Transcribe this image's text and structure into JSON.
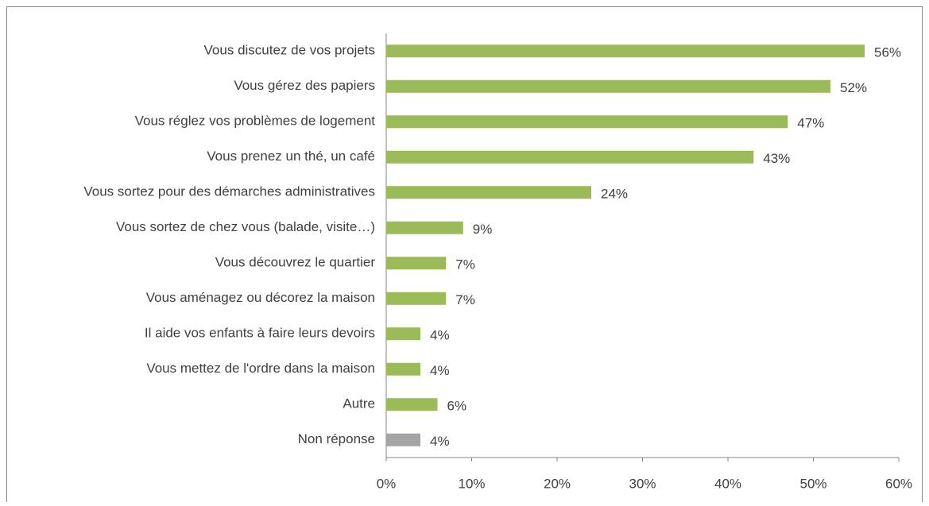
{
  "chart_data": {
    "type": "bar",
    "orientation": "horizontal",
    "categories": [
      "Vous discutez de vos projets",
      "Vous gérez des papiers",
      "Vous réglez vos problèmes de logement",
      "Vous prenez un thé, un café",
      "Vous sortez pour des démarches administratives",
      "Vous sortez de chez vous (balade, visite…)",
      "Vous découvrez le quartier",
      "Vous aménagez ou décorez la maison",
      "Il aide vos enfants à faire leurs devoirs",
      "Vous mettez de l'ordre dans la maison",
      "Autre",
      "Non réponse"
    ],
    "values": [
      56,
      52,
      47,
      43,
      24,
      9,
      7,
      7,
      4,
      4,
      6,
      4
    ],
    "value_labels": [
      "56%",
      "52%",
      "47%",
      "43%",
      "24%",
      "9%",
      "7%",
      "7%",
      "4%",
      "4%",
      "6%",
      "4%"
    ],
    "colors": [
      "#9bbb59",
      "#9bbb59",
      "#9bbb59",
      "#9bbb59",
      "#9bbb59",
      "#9bbb59",
      "#9bbb59",
      "#9bbb59",
      "#9bbb59",
      "#9bbb59",
      "#9bbb59",
      "#a5a5a5"
    ],
    "xlim": [
      0,
      60
    ],
    "xticks": [
      {
        "value": 0,
        "label": "0%"
      },
      {
        "value": 10,
        "label": "10%"
      },
      {
        "value": 20,
        "label": "20%"
      },
      {
        "value": 30,
        "label": "30%"
      },
      {
        "value": 40,
        "label": "40%"
      },
      {
        "value": 50,
        "label": "50%"
      },
      {
        "value": 60,
        "label": "60%"
      }
    ],
    "grid": false
  }
}
